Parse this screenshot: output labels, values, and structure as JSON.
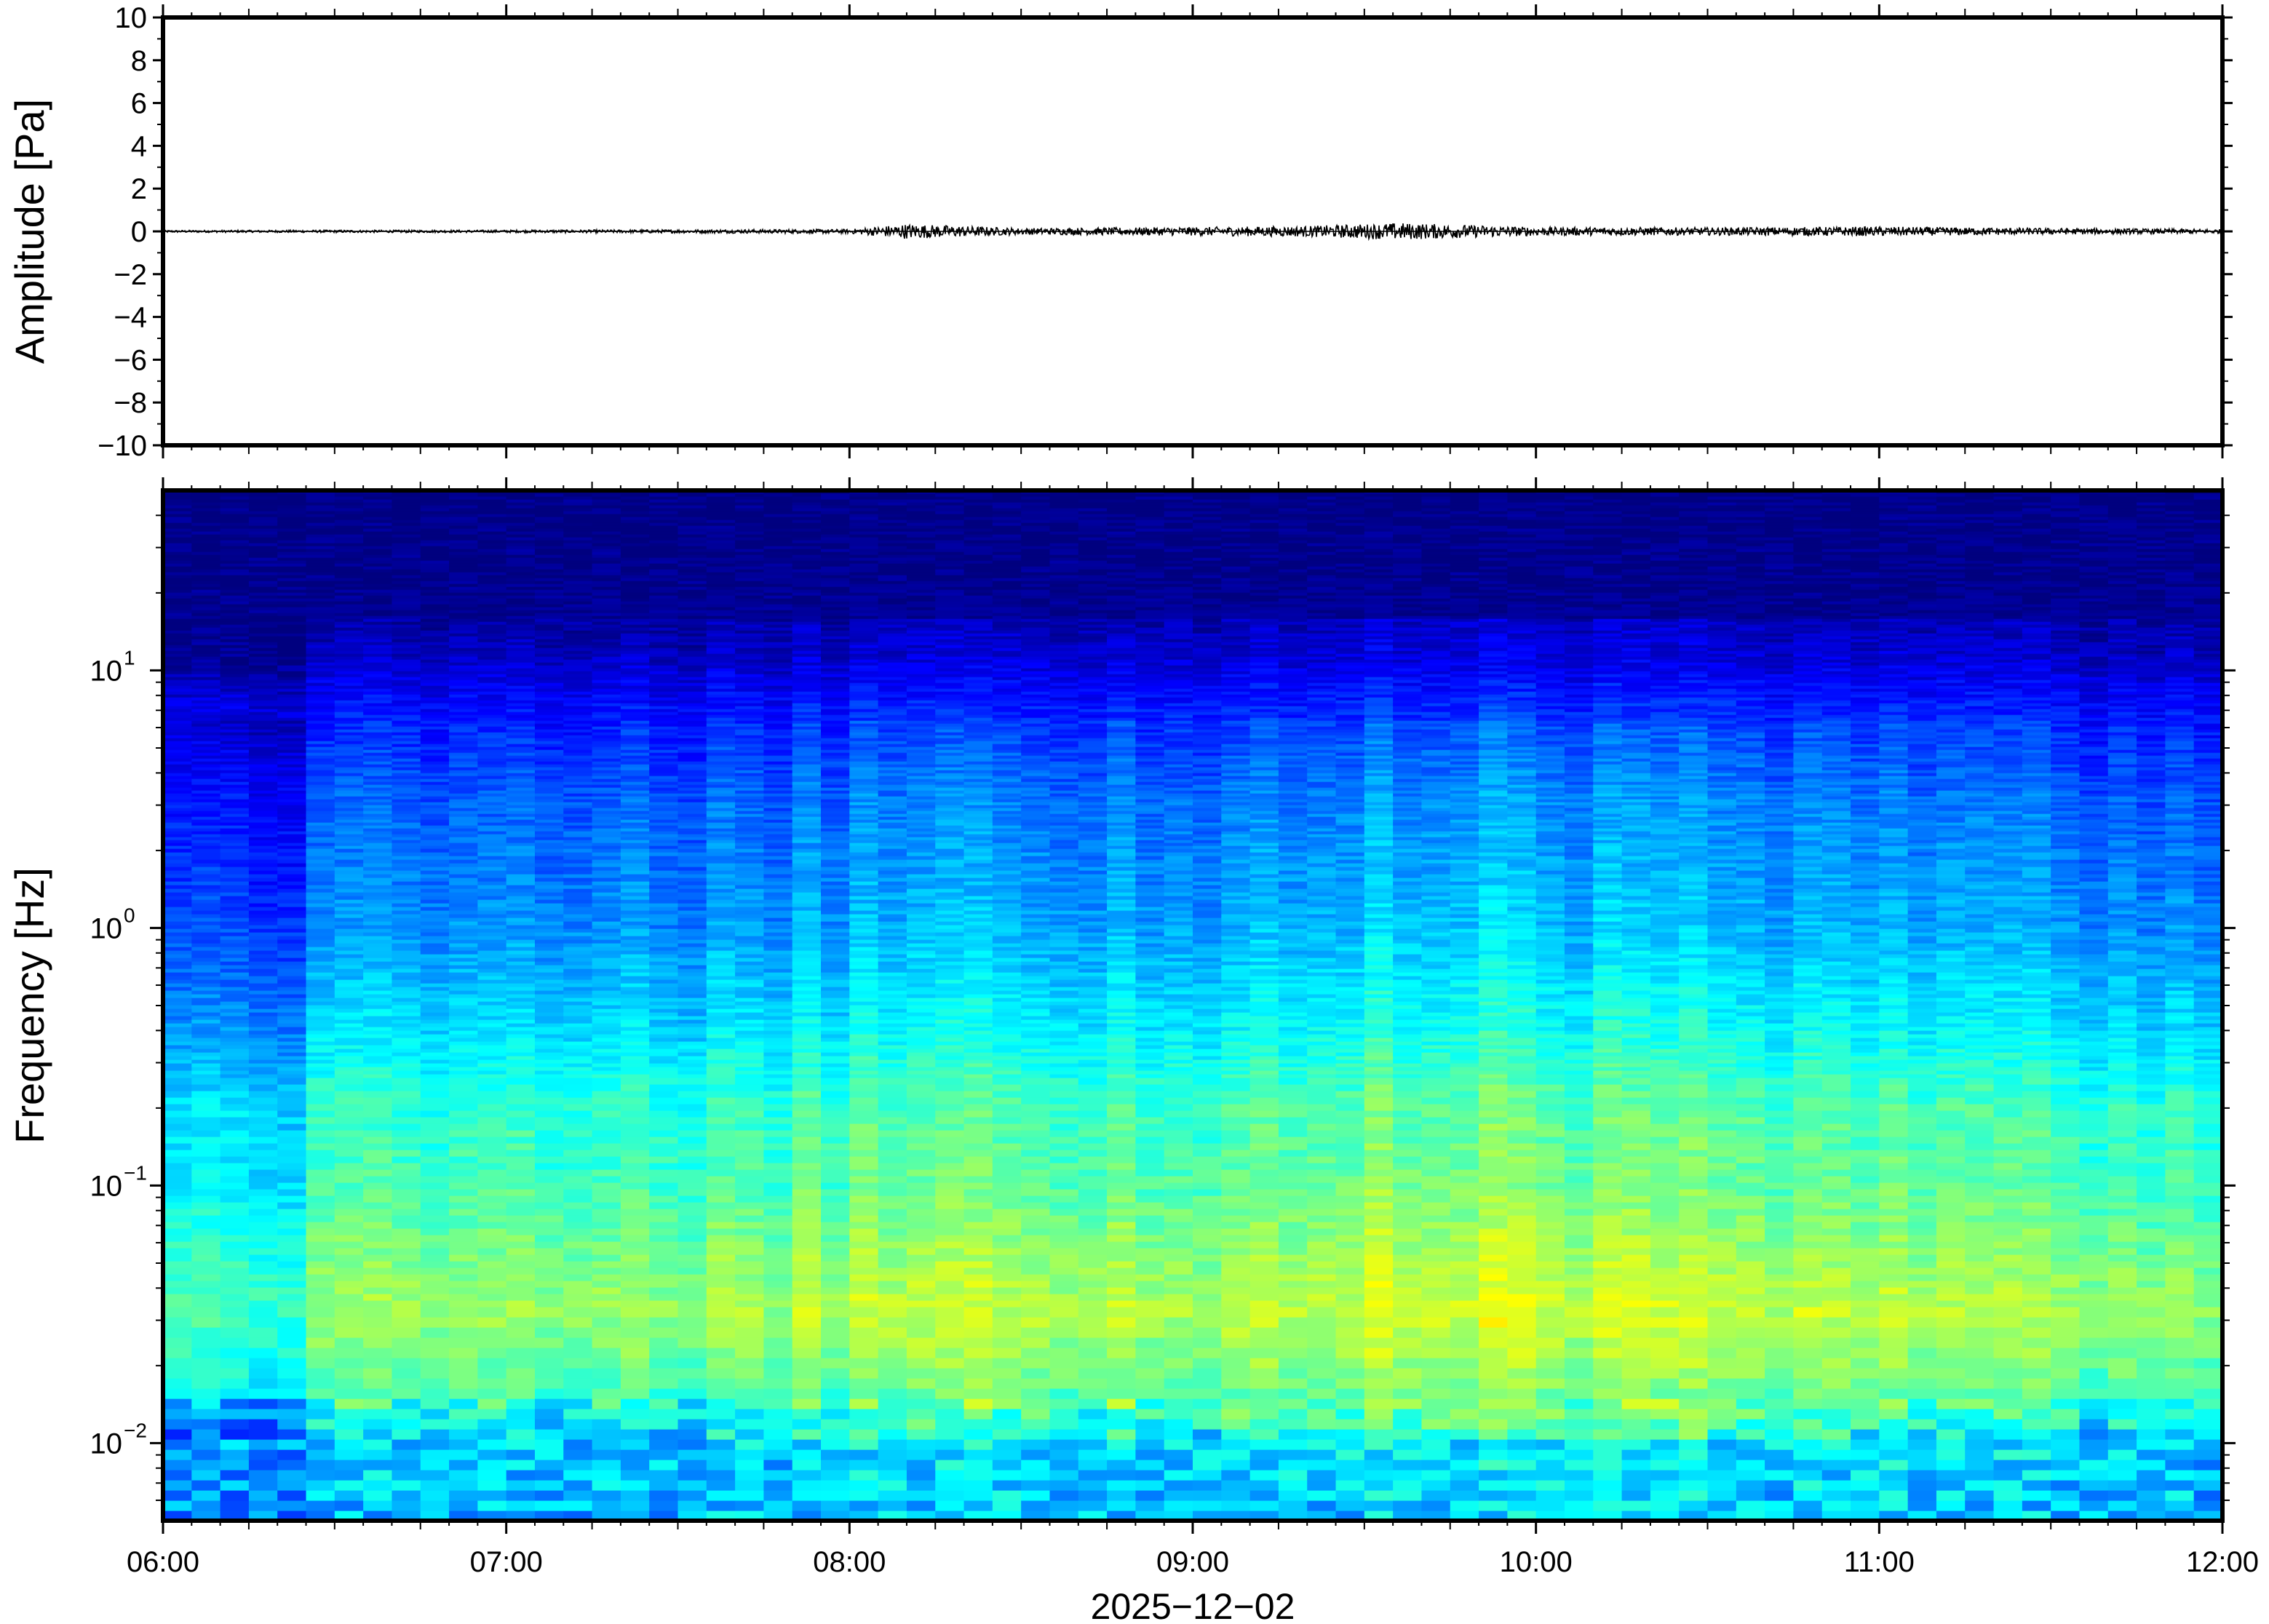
{
  "chart_data": [
    {
      "type": "line",
      "panel": "waveform",
      "ylabel": "Amplitude [Pa]",
      "ylim": [
        -10,
        10
      ],
      "yticks": [
        -10,
        -8,
        -6,
        -4,
        -2,
        0,
        2,
        4,
        6,
        8,
        10
      ],
      "ytick_labels": [
        "−10",
        "−8",
        "−6",
        "−4",
        "−2",
        "0",
        "2",
        "4",
        "6",
        "8",
        "10"
      ],
      "xlim": [
        "06:00",
        "12:00"
      ],
      "grid": false,
      "series": [
        {
          "color": "#000000",
          "x": [
            "06:00",
            "06:30",
            "07:00",
            "07:30",
            "08:00",
            "08:10",
            "08:30",
            "09:00",
            "09:20",
            "09:36",
            "10:00",
            "10:30",
            "11:00",
            "11:30",
            "12:00"
          ],
          "y": [
            0.05,
            0.06,
            0.06,
            0.08,
            0.1,
            0.35,
            0.15,
            0.2,
            0.25,
            0.4,
            0.2,
            0.18,
            0.22,
            0.15,
            0.1
          ]
        }
      ]
    },
    {
      "type": "heatmap",
      "panel": "spectrogram",
      "ylabel": "Frequency [Hz]",
      "yscale": "log",
      "ylim": [
        0.005,
        50
      ],
      "yticks": [
        0.01,
        0.1,
        1,
        10
      ],
      "ytick_labels": [
        {
          "base": "10",
          "exp": "−2"
        },
        {
          "base": "10",
          "exp": "−1"
        },
        {
          "base": "10",
          "exp": "0"
        },
        {
          "base": "10",
          "exp": "1"
        }
      ],
      "xlim": [
        "06:00",
        "12:00"
      ],
      "xticks": [
        "06:00",
        "07:00",
        "08:00",
        "09:00",
        "10:00",
        "11:00",
        "12:00"
      ],
      "xlabel": "2025−12−02",
      "colormap": "jet",
      "colormap_stops": [
        "#00007f",
        "#0000ff",
        "#007fff",
        "#00ffff",
        "#7fff7f",
        "#ffff00",
        "#ff7f00"
      ],
      "description_levels": {
        "above_10Hz": "very low",
        "1_to_10Hz": "low",
        "0.1_to_0.5Hz": "medium",
        "0.02_to_0.1Hz": "high (peak ~09:30-10:30)",
        "below_0.015Hz": "medium-low"
      }
    }
  ],
  "colors": {
    "frame": "#000000",
    "background": "#ffffff",
    "trace": "#000000"
  }
}
